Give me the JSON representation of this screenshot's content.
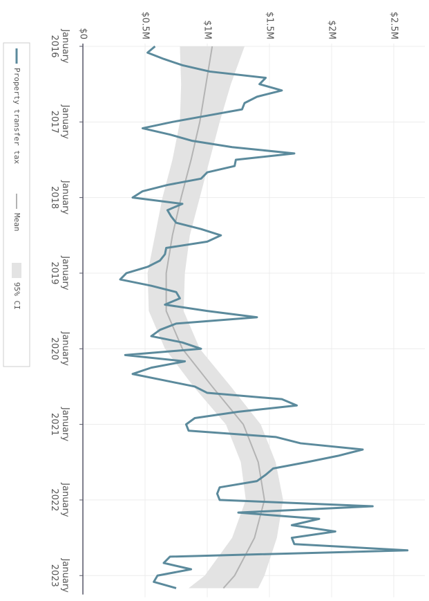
{
  "chart_data": {
    "type": "line",
    "x": [
      "2016-01",
      "2016-02",
      "2016-03",
      "2016-04",
      "2016-05",
      "2016-06",
      "2016-07",
      "2016-08",
      "2016-09",
      "2016-10",
      "2016-11",
      "2016-12",
      "2017-01",
      "2017-02",
      "2017-03",
      "2017-04",
      "2017-05",
      "2017-06",
      "2017-07",
      "2017-08",
      "2017-09",
      "2017-10",
      "2017-11",
      "2017-12",
      "2018-01",
      "2018-02",
      "2018-03",
      "2018-04",
      "2018-05",
      "2018-06",
      "2018-07",
      "2018-08",
      "2018-09",
      "2018-10",
      "2018-11",
      "2018-12",
      "2019-01",
      "2019-02",
      "2019-03",
      "2019-04",
      "2019-05",
      "2019-06",
      "2019-07",
      "2019-08",
      "2019-09",
      "2019-10",
      "2019-11",
      "2019-12",
      "2020-01",
      "2020-02",
      "2020-03",
      "2020-04",
      "2020-05",
      "2020-06",
      "2020-07",
      "2020-08",
      "2020-09",
      "2020-10",
      "2020-11",
      "2020-12",
      "2021-01",
      "2021-02",
      "2021-03",
      "2021-04",
      "2021-05",
      "2021-06",
      "2021-07",
      "2021-08",
      "2021-09",
      "2021-10",
      "2021-11",
      "2021-12",
      "2022-01",
      "2022-02",
      "2022-03",
      "2022-04",
      "2022-05",
      "2022-06",
      "2022-07",
      "2022-08",
      "2022-09",
      "2022-10",
      "2022-11",
      "2022-12",
      "2023-01",
      "2023-02",
      "2023-03"
    ],
    "series": [
      {
        "name": "Property transfer tax",
        "color": "#5b8a9c",
        "values": [
          0.58,
          0.52,
          0.65,
          0.8,
          1.02,
          1.47,
          1.42,
          1.6,
          1.4,
          1.3,
          1.28,
          1.0,
          0.72,
          0.48,
          0.7,
          0.88,
          1.2,
          1.7,
          1.23,
          1.22,
          1.0,
          0.95,
          0.68,
          0.48,
          0.4,
          0.8,
          0.68,
          0.71,
          0.75,
          0.95,
          1.11,
          1.0,
          0.67,
          0.66,
          0.62,
          0.52,
          0.35,
          0.3,
          0.55,
          0.75,
          0.78,
          0.66,
          1.0,
          1.4,
          0.75,
          0.62,
          0.55,
          0.8,
          0.95,
          0.34,
          0.82,
          0.55,
          0.4,
          0.65,
          0.9,
          1.0,
          1.6,
          1.72,
          1.25,
          0.9,
          0.83,
          0.85,
          1.55,
          1.75,
          2.25,
          2.05,
          1.8,
          1.53,
          1.47,
          1.4,
          1.1,
          1.08,
          1.1,
          2.33,
          1.25,
          1.9,
          1.68,
          2.03,
          1.68,
          1.7,
          2.61,
          0.7,
          0.65,
          0.87,
          0.6,
          0.57,
          0.75
        ]
      }
    ],
    "fit": {
      "x": [
        "2016-01",
        "2016-07",
        "2017-01",
        "2017-07",
        "2018-01",
        "2018-07",
        "2019-01",
        "2019-07",
        "2020-01",
        "2020-07",
        "2021-01",
        "2021-07",
        "2022-01",
        "2022-07",
        "2023-01",
        "2023-03"
      ],
      "mean": {
        "name": "Mean",
        "color": "#b3b3b3",
        "values": [
          1.04,
          0.99,
          0.94,
          0.87,
          0.79,
          0.72,
          0.67,
          0.67,
          0.8,
          1.04,
          1.29,
          1.41,
          1.46,
          1.38,
          1.22,
          1.13
        ]
      },
      "ci": {
        "name": "95% CI",
        "color": "#e3e3e3",
        "lower": [
          0.78,
          0.79,
          0.78,
          0.72,
          0.64,
          0.58,
          0.52,
          0.53,
          0.66,
          0.89,
          1.15,
          1.27,
          1.31,
          1.2,
          0.98,
          0.85
        ],
        "upper": [
          1.3,
          1.19,
          1.1,
          1.02,
          0.94,
          0.86,
          0.82,
          0.81,
          0.94,
          1.19,
          1.43,
          1.55,
          1.61,
          1.56,
          1.46,
          1.41
        ]
      }
    },
    "xlim": [
      "2016-01",
      "2023-04"
    ],
    "xticks": [
      {
        "value": "2016-01",
        "label": "January 2016"
      },
      {
        "value": "2017-01",
        "label": "January 2017"
      },
      {
        "value": "2018-01",
        "label": "January 2018"
      },
      {
        "value": "2019-01",
        "label": "January 2019"
      },
      {
        "value": "2020-01",
        "label": "January 2020"
      },
      {
        "value": "2021-01",
        "label": "January 2021"
      },
      {
        "value": "2022-01",
        "label": "January 2022"
      },
      {
        "value": "2023-01",
        "label": "January 2023"
      }
    ],
    "ylim": [
      0,
      2.75
    ],
    "yticks": [
      {
        "value": 0,
        "label": "$0"
      },
      {
        "value": 0.5,
        "label": "$0.5M"
      },
      {
        "value": 1,
        "label": "$1M"
      },
      {
        "value": 1.5,
        "label": "$1.5M"
      },
      {
        "value": 2,
        "label": "$2M"
      },
      {
        "value": 2.5,
        "label": "$2.5M"
      }
    ],
    "grid": true,
    "legend": "bottom-left",
    "rotated": true
  }
}
